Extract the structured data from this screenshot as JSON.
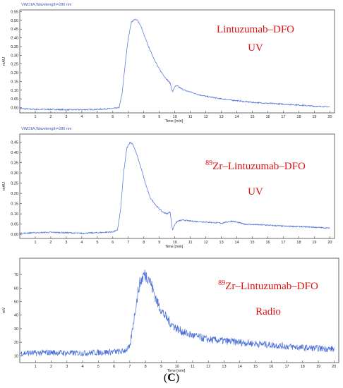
{
  "caption": {
    "open": "(",
    "letter": "C",
    "close": ")"
  },
  "chart_data": [
    {
      "type": "line",
      "signal_label": "VWD1A,Wavelength=280 nm",
      "title_lines": [
        {
          "sup": "",
          "text": "Lintuzumab–DFO"
        },
        {
          "sup": "",
          "text": "UV"
        }
      ],
      "xlabel": "Time [min]",
      "ylabel": "mAU",
      "xlim": [
        0,
        20.3
      ],
      "ylim": [
        -0.03,
        0.56
      ],
      "xticks": [
        1,
        2,
        3,
        4,
        5,
        6,
        7,
        8,
        9,
        10,
        11,
        12,
        13,
        14,
        15,
        16,
        17,
        18,
        19,
        20
      ],
      "yticks": [
        0.0,
        0.05,
        0.1,
        0.15,
        0.2,
        0.25,
        0.3,
        0.35,
        0.4,
        0.45,
        0.5,
        0.55
      ],
      "ytick_labels": [
        "0.00",
        "0.05",
        "0.10",
        "0.15",
        "0.20",
        "0.25",
        "0.30",
        "0.35",
        "0.40",
        "0.45",
        "0.50",
        "0.55"
      ],
      "color": "#4a6fd8",
      "series": [
        {
          "x": [
            0,
            1,
            2,
            3,
            4,
            5,
            6,
            6.4,
            6.6,
            6.8,
            7.0,
            7.2,
            7.4,
            7.6,
            7.8,
            8.0,
            8.3,
            8.6,
            9.0,
            9.4,
            9.7,
            9.85,
            10.0,
            10.15,
            10.3,
            10.6,
            11,
            11.5,
            12,
            13,
            14,
            15,
            16,
            17,
            18,
            19,
            20
          ],
          "y": [
            -0.005,
            -0.01,
            -0.01,
            -0.012,
            -0.012,
            -0.01,
            -0.005,
            0.0,
            0.08,
            0.25,
            0.4,
            0.49,
            0.505,
            0.5,
            0.47,
            0.42,
            0.35,
            0.29,
            0.22,
            0.17,
            0.14,
            0.09,
            0.12,
            0.125,
            0.115,
            0.1,
            0.09,
            0.075,
            0.065,
            0.05,
            0.04,
            0.03,
            0.025,
            0.02,
            0.015,
            0.008,
            0.005
          ]
        }
      ]
    },
    {
      "type": "line",
      "signal_label": "VWD1A,Wavelength=280 nm",
      "title_lines": [
        {
          "sup": "89",
          "text": "Zr–Lintuzumab–DFO"
        },
        {
          "sup": "",
          "text": "UV"
        }
      ],
      "xlabel": "Time [min]",
      "ylabel": "mAU",
      "xlim": [
        0,
        20.3
      ],
      "ylim": [
        -0.02,
        0.49
      ],
      "xticks": [
        1,
        2,
        3,
        4,
        5,
        6,
        7,
        8,
        9,
        10,
        11,
        12,
        13,
        14,
        15,
        16,
        17,
        18,
        19,
        20
      ],
      "yticks": [
        0.0,
        0.05,
        0.1,
        0.15,
        0.2,
        0.25,
        0.3,
        0.35,
        0.4,
        0.45
      ],
      "ytick_labels": [
        "0.00",
        "0.05",
        "0.10",
        "0.15",
        "0.20",
        "0.25",
        "0.30",
        "0.35",
        "0.40",
        "0.45"
      ],
      "color": "#4a6fd8",
      "series": [
        {
          "x": [
            0,
            1,
            2,
            3,
            4,
            5,
            6,
            6.3,
            6.5,
            6.7,
            6.9,
            7.1,
            7.3,
            7.5,
            7.8,
            8.1,
            8.4,
            8.8,
            9.2,
            9.5,
            9.7,
            9.85,
            10.0,
            10.2,
            10.5,
            11,
            12,
            13,
            13.7,
            14.5,
            15,
            16,
            17,
            18,
            19,
            20
          ],
          "y": [
            0.005,
            0.008,
            0.01,
            0.008,
            0.005,
            0.008,
            0.012,
            0.02,
            0.12,
            0.3,
            0.42,
            0.45,
            0.44,
            0.4,
            0.33,
            0.25,
            0.18,
            0.14,
            0.11,
            0.1,
            0.11,
            0.02,
            0.05,
            0.065,
            0.07,
            0.065,
            0.06,
            0.055,
            0.065,
            0.05,
            0.048,
            0.045,
            0.04,
            0.038,
            0.035,
            0.03
          ]
        }
      ]
    },
    {
      "type": "line",
      "signal_label": "",
      "title_lines": [
        {
          "sup": "89",
          "text": "Zr–Lintuzumab–DFO"
        },
        {
          "sup": "",
          "text": "Radio"
        }
      ],
      "xlabel": "Time [min]",
      "ylabel": "mV",
      "xlim": [
        0,
        20.3
      ],
      "ylim": [
        5,
        82
      ],
      "xticks": [
        1,
        2,
        3,
        4,
        5,
        6,
        7,
        8,
        9,
        10,
        11,
        12,
        13,
        14,
        15,
        16,
        17,
        18,
        19,
        20
      ],
      "yticks": [
        10,
        20,
        30,
        40,
        50,
        60,
        70
      ],
      "ytick_labels": [
        "10",
        "20",
        "30",
        "40",
        "50",
        "60",
        "70"
      ],
      "color": "#4a6fd8",
      "noise": 3.2,
      "series": [
        {
          "x": [
            0,
            1,
            2,
            3,
            4,
            5,
            6,
            6.5,
            7.0,
            7.3,
            7.6,
            7.9,
            8.2,
            8.5,
            8.8,
            9.2,
            9.6,
            10,
            10.5,
            11,
            12,
            13,
            14,
            15,
            16,
            17,
            18,
            19,
            20
          ],
          "y": [
            12,
            12,
            12.5,
            12,
            12,
            12.5,
            13,
            13,
            16,
            40,
            62,
            70,
            68,
            58,
            48,
            40,
            34,
            30,
            27,
            25,
            22,
            21,
            20,
            19,
            18,
            17,
            16,
            15.5,
            15
          ]
        }
      ]
    }
  ]
}
